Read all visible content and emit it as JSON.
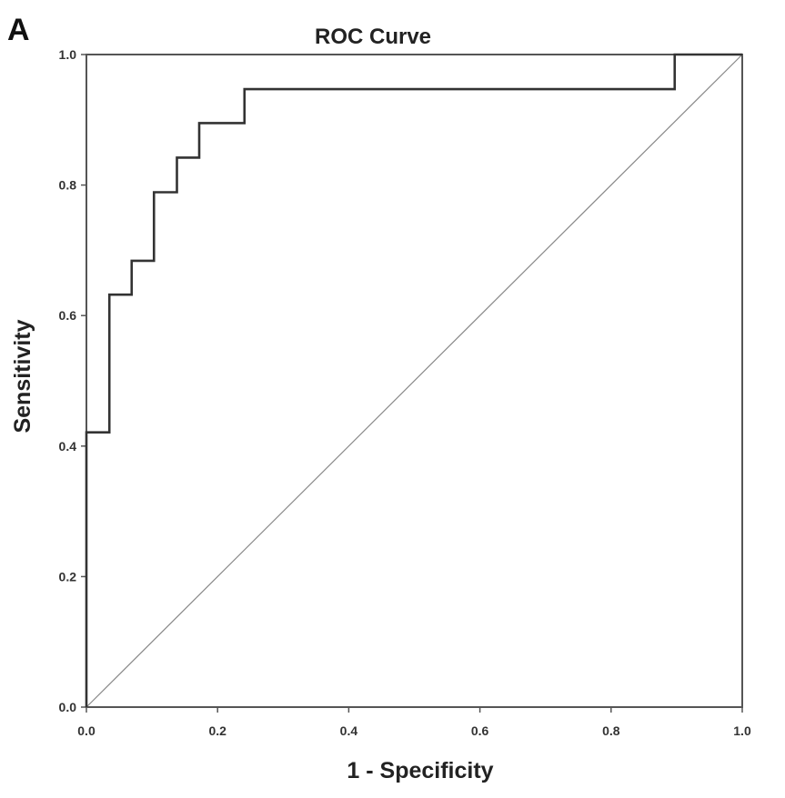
{
  "panel_label": "A",
  "chart_data": {
    "type": "line",
    "title": "ROC Curve",
    "xlabel": "1 - Specificity",
    "ylabel": "Sensitivity",
    "xlim": [
      0,
      1
    ],
    "ylim": [
      0,
      1
    ],
    "xticks": [
      "0.0",
      "0.2",
      "0.4",
      "0.6",
      "0.8",
      "1.0"
    ],
    "yticks": [
      "0.0",
      "0.2",
      "0.4",
      "0.6",
      "0.8",
      "1.0"
    ],
    "grid": false,
    "series": [
      {
        "style": "step",
        "color": "#333333",
        "x": [
          0.0,
          0.0,
          0.035,
          0.035,
          0.069,
          0.069,
          0.103,
          0.103,
          0.138,
          0.138,
          0.172,
          0.172,
          0.241,
          0.241,
          0.897,
          0.897,
          1.0
        ],
        "y": [
          0.0,
          0.421,
          0.421,
          0.632,
          0.632,
          0.684,
          0.684,
          0.789,
          0.789,
          0.842,
          0.842,
          0.895,
          0.895,
          0.947,
          0.947,
          1.0,
          1.0
        ]
      },
      {
        "style": "reference",
        "color": "#888888",
        "x": [
          0.0,
          1.0
        ],
        "y": [
          0.0,
          1.0
        ]
      }
    ]
  }
}
